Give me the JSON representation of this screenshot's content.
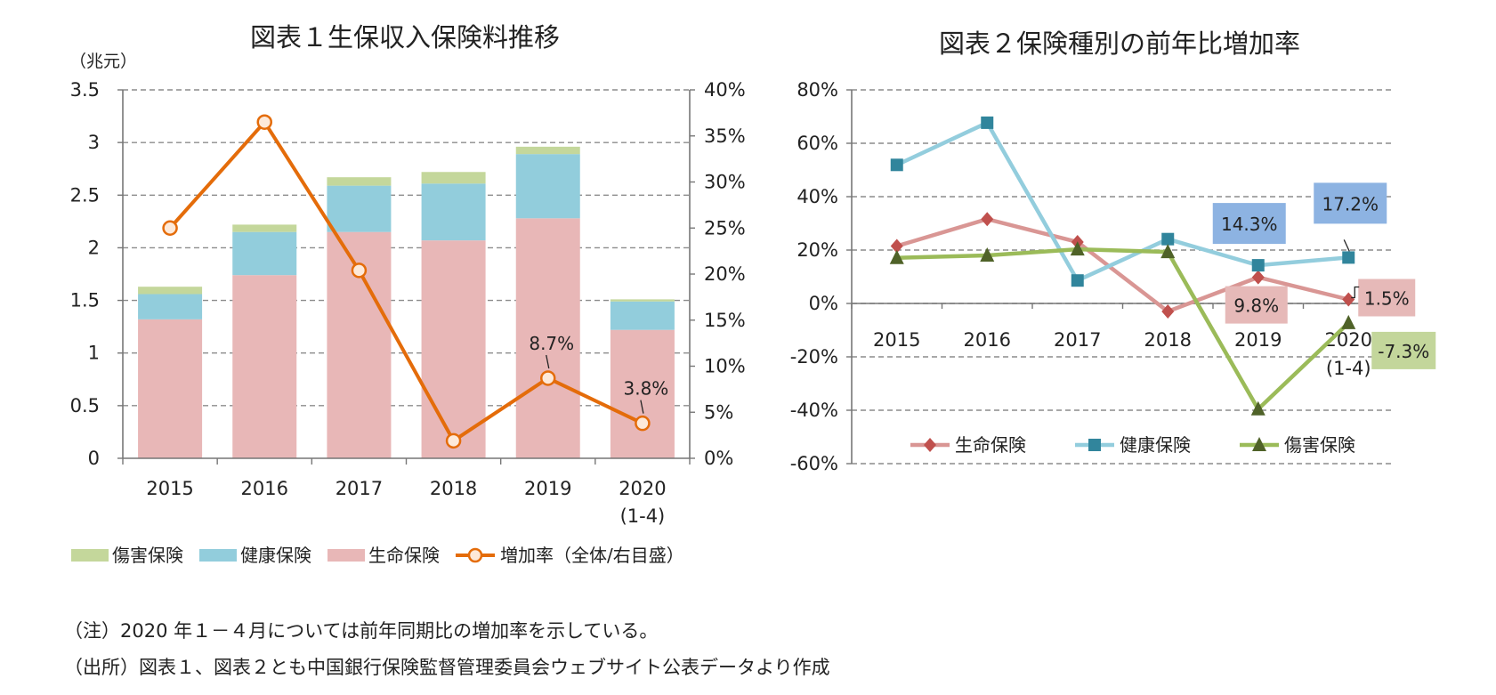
{
  "chart_data": [
    {
      "type": "bar",
      "stacked": true,
      "title": "図表１生保収入保険料推移",
      "ylabel": "（兆元）",
      "categories": [
        "2015",
        "2016",
        "2017",
        "2018",
        "2019",
        "2020"
      ],
      "category_sublabels": [
        "",
        "",
        "",
        "",
        "",
        "(1-4)"
      ],
      "ylim": [
        0,
        3.5
      ],
      "yticks": [
        "0",
        "0.5",
        "1",
        "1.5",
        "2",
        "2.5",
        "3",
        "3.5"
      ],
      "y2lim": [
        0,
        40
      ],
      "y2ticks": [
        "0%",
        "5%",
        "10%",
        "15%",
        "20%",
        "25%",
        "30%",
        "35%",
        "40%"
      ],
      "grid": true,
      "series": [
        {
          "name": "生命保険",
          "color": "#e8b7b7",
          "values": [
            1.32,
            1.74,
            2.15,
            2.07,
            2.28,
            1.22
          ]
        },
        {
          "name": "健康保険",
          "color": "#92cddc",
          "values": [
            0.24,
            0.41,
            0.44,
            0.54,
            0.61,
            0.27
          ]
        },
        {
          "name": "傷害保険",
          "color": "#c4d79b",
          "values": [
            0.07,
            0.07,
            0.08,
            0.11,
            0.07,
            0.02
          ]
        }
      ],
      "line_series": {
        "name": "増加率（全体/右目盛）",
        "color": "#e46c0a",
        "axis": "right",
        "values": [
          25.0,
          36.5,
          20.4,
          1.9,
          8.7,
          3.8
        ]
      },
      "annotations": [
        {
          "text": "8.7%",
          "category": "2019",
          "value": 8.7
        },
        {
          "text": "3.8%",
          "category": "2020",
          "value": 3.8
        }
      ],
      "legend": [
        {
          "name": "傷害保険",
          "color": "#c4d79b",
          "kind": "box"
        },
        {
          "name": "健康保険",
          "color": "#92cddc",
          "kind": "box"
        },
        {
          "name": "生命保険",
          "color": "#e8b7b7",
          "kind": "box"
        },
        {
          "name": "増加率（全体/右目盛）",
          "color": "#e46c0a",
          "kind": "line-circle"
        }
      ],
      "legend_position": "bottom"
    },
    {
      "type": "line",
      "title": "図表２保険種別の前年比増加率",
      "categories": [
        "2015",
        "2016",
        "2017",
        "2018",
        "2019",
        "2020"
      ],
      "category_sublabels": [
        "",
        "",
        "",
        "",
        "",
        "(1-4)"
      ],
      "ylim": [
        -60,
        80
      ],
      "yticks": [
        "-60%",
        "-40%",
        "-20%",
        "0%",
        "20%",
        "40%",
        "60%",
        "80%"
      ],
      "grid": true,
      "series": [
        {
          "name": "生命保険",
          "color": "#d99694",
          "marker_color": "#c0504d",
          "marker": "diamond",
          "values": [
            21.5,
            31.6,
            23.0,
            -3.0,
            9.8,
            1.5
          ]
        },
        {
          "name": "健康保険",
          "color": "#93cddd",
          "marker_color": "#31859c",
          "marker": "square",
          "values": [
            51.9,
            67.7,
            8.6,
            24.1,
            14.3,
            17.2
          ]
        },
        {
          "name": "傷害保険",
          "color": "#9bbb59",
          "marker_color": "#4f6228",
          "marker": "triangle",
          "values": [
            17.1,
            18.0,
            20.3,
            19.3,
            -39.6,
            -7.3
          ]
        }
      ],
      "annotations": [
        {
          "text": "14.3%",
          "series": "健康保険",
          "category": "2019",
          "color": "#8db3e2"
        },
        {
          "text": "17.2%",
          "series": "健康保険",
          "category": "2020",
          "color": "#8db3e2"
        },
        {
          "text": "9.8%",
          "series": "生命保険",
          "category": "2019",
          "color": "#e6b9b8"
        },
        {
          "text": "1.5%",
          "series": "生命保険",
          "category": "2020",
          "color": "#e6b9b8"
        },
        {
          "text": "-7.3%",
          "series": "傷害保険",
          "category": "2020",
          "color": "#c3d69b"
        }
      ],
      "legend_position": "bottom"
    }
  ],
  "notes": [
    "（注）2020 年１－４月については前年同期比の増加率を示している。",
    "（出所）図表１、図表２とも中国銀行保険監督管理委員会ウェブサイト公表データより作成"
  ]
}
